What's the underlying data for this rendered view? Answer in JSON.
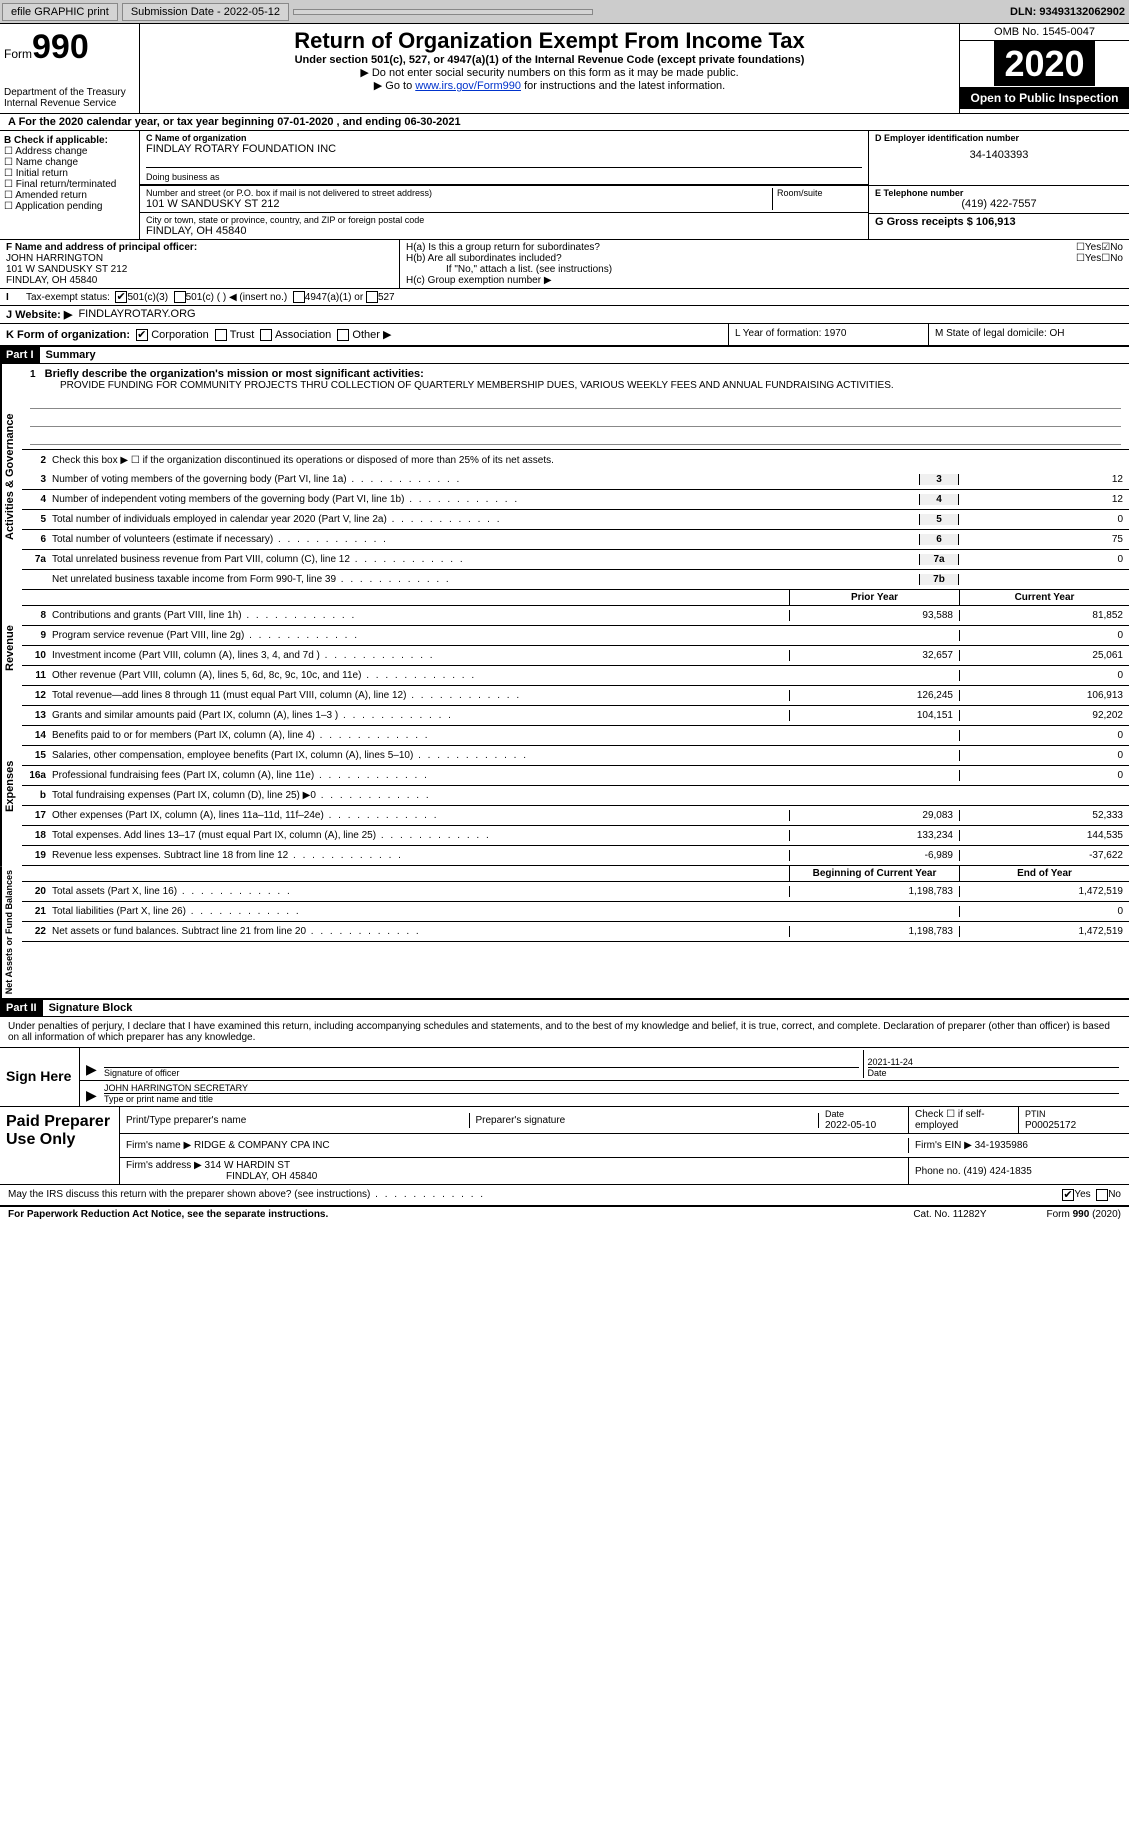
{
  "toolbar": {
    "efile": "efile GRAPHIC print",
    "subdate_label": "Submission Date - 2022-05-12",
    "dln": "DLN: 93493132062902"
  },
  "header": {
    "formword": "Form",
    "formnum": "990",
    "dept": "Department of the Treasury\nInternal Revenue Service",
    "title": "Return of Organization Exempt From Income Tax",
    "subtitle": "Under section 501(c), 527, or 4947(a)(1) of the Internal Revenue Code (except private foundations)",
    "instr1": "▶ Do not enter social security numbers on this form as it may be made public.",
    "instr2a": "▶ Go to ",
    "instr2link": "www.irs.gov/Form990",
    "instr2b": " for instructions and the latest information.",
    "omb": "OMB No. 1545-0047",
    "year": "2020",
    "open": "Open to Public Inspection"
  },
  "period": "A For the 2020 calendar year, or tax year beginning 07-01-2020    , and ending 06-30-2021",
  "B": {
    "label": "B Check if applicable:",
    "items": [
      "Address change",
      "Name change",
      "Initial return",
      "Final return/terminated",
      "Amended return",
      "Application pending"
    ]
  },
  "C": {
    "nameLabel": "C Name of organization",
    "name": "FINDLAY ROTARY FOUNDATION INC",
    "dbaLabel": "Doing business as",
    "dba": "",
    "streetLabel": "Number and street (or P.O. box if mail is not delivered to street address)",
    "roomLabel": "Room/suite",
    "street": "101 W SANDUSKY ST 212",
    "cityLabel": "City or town, state or province, country, and ZIP or foreign postal code",
    "city": "FINDLAY, OH  45840"
  },
  "D": {
    "label": "D Employer identification number",
    "value": "34-1403393"
  },
  "E": {
    "label": "E Telephone number",
    "value": "(419) 422-7557"
  },
  "G": {
    "label": "G Gross receipts $ 106,913"
  },
  "F": {
    "label": "F  Name and address of principal officer:",
    "name": "JOHN HARRINGTON",
    "addr1": "101 W SANDUSKY ST 212",
    "addr2": "FINDLAY, OH  45840"
  },
  "H": {
    "a": "H(a)  Is this a group return for subordinates?",
    "b": "H(b)  Are all subordinates included?",
    "bnote": "If \"No,\" attach a list. (see instructions)",
    "c": "H(c)  Group exemption number ▶",
    "yes": "Yes",
    "no": "No"
  },
  "I": {
    "label": "Tax-exempt status:",
    "opt1": "501(c)(3)",
    "opt2": "501(c) (   ) ◀ (insert no.)",
    "opt3": "4947(a)(1) or",
    "opt4": "527"
  },
  "J": {
    "label": "J  Website: ▶",
    "value": "FINDLAYROTARY.ORG"
  },
  "K": {
    "label": "K Form of organization:",
    "opts": [
      "Corporation",
      "Trust",
      "Association",
      "Other ▶"
    ]
  },
  "L": {
    "label": "L Year of formation: 1970"
  },
  "M": {
    "label": "M State of legal domicile: OH"
  },
  "part1": {
    "num": "Part I",
    "title": "Summary"
  },
  "summary": {
    "line1Label": "Briefly describe the organization's mission or most significant activities:",
    "mission": "PROVIDE FUNDING FOR COMMUNITY PROJECTS THRU COLLECTION OF QUARTERLY MEMBERSHIP DUES, VARIOUS WEEKLY FEES AND ANNUAL FUNDRAISING ACTIVITIES.",
    "line2": "Check this box ▶ ☐  if the organization discontinued its operations or disposed of more than 25% of its net assets.",
    "lines": [
      {
        "n": "3",
        "t": "Number of voting members of the governing body (Part VI, line 1a)",
        "c": "3",
        "v": "12"
      },
      {
        "n": "4",
        "t": "Number of independent voting members of the governing body (Part VI, line 1b)",
        "c": "4",
        "v": "12"
      },
      {
        "n": "5",
        "t": "Total number of individuals employed in calendar year 2020 (Part V, line 2a)",
        "c": "5",
        "v": "0"
      },
      {
        "n": "6",
        "t": "Total number of volunteers (estimate if necessary)",
        "c": "6",
        "v": "75"
      },
      {
        "n": "7a",
        "t": "Total unrelated business revenue from Part VIII, column (C), line 12",
        "c": "7a",
        "v": "0"
      },
      {
        "n": "",
        "t": "Net unrelated business taxable income from Form 990-T, line 39",
        "c": "7b",
        "v": ""
      }
    ]
  },
  "revHeader": {
    "prior": "Prior Year",
    "current": "Current Year"
  },
  "revenue": [
    {
      "n": "8",
      "t": "Contributions and grants (Part VIII, line 1h)",
      "p": "93,588",
      "c": "81,852"
    },
    {
      "n": "9",
      "t": "Program service revenue (Part VIII, line 2g)",
      "p": "",
      "c": "0"
    },
    {
      "n": "10",
      "t": "Investment income (Part VIII, column (A), lines 3, 4, and 7d )",
      "p": "32,657",
      "c": "25,061"
    },
    {
      "n": "11",
      "t": "Other revenue (Part VIII, column (A), lines 5, 6d, 8c, 9c, 10c, and 11e)",
      "p": "",
      "c": "0"
    },
    {
      "n": "12",
      "t": "Total revenue—add lines 8 through 11 (must equal Part VIII, column (A), line 12)",
      "p": "126,245",
      "c": "106,913"
    }
  ],
  "expenses": [
    {
      "n": "13",
      "t": "Grants and similar amounts paid (Part IX, column (A), lines 1–3 )",
      "p": "104,151",
      "c": "92,202"
    },
    {
      "n": "14",
      "t": "Benefits paid to or for members (Part IX, column (A), line 4)",
      "p": "",
      "c": "0"
    },
    {
      "n": "15",
      "t": "Salaries, other compensation, employee benefits (Part IX, column (A), lines 5–10)",
      "p": "",
      "c": "0"
    },
    {
      "n": "16a",
      "t": "Professional fundraising fees (Part IX, column (A), line 11e)",
      "p": "",
      "c": "0"
    },
    {
      "n": "b",
      "t": "Total fundraising expenses (Part IX, column (D), line 25) ▶0",
      "p": "SHADE",
      "c": "SHADE"
    },
    {
      "n": "17",
      "t": "Other expenses (Part IX, column (A), lines 11a–11d, 11f–24e)",
      "p": "29,083",
      "c": "52,333"
    },
    {
      "n": "18",
      "t": "Total expenses. Add lines 13–17 (must equal Part IX, column (A), line 25)",
      "p": "133,234",
      "c": "144,535"
    },
    {
      "n": "19",
      "t": "Revenue less expenses. Subtract line 18 from line 12",
      "p": "-6,989",
      "c": "-37,622"
    }
  ],
  "netHeader": {
    "begin": "Beginning of Current Year",
    "end": "End of Year"
  },
  "netassets": [
    {
      "n": "20",
      "t": "Total assets (Part X, line 16)",
      "p": "1,198,783",
      "c": "1,472,519"
    },
    {
      "n": "21",
      "t": "Total liabilities (Part X, line 26)",
      "p": "",
      "c": "0"
    },
    {
      "n": "22",
      "t": "Net assets or fund balances. Subtract line 21 from line 20",
      "p": "1,198,783",
      "c": "1,472,519"
    }
  ],
  "part2": {
    "num": "Part II",
    "title": "Signature Block"
  },
  "sigDecl": "Under penalties of perjury, I declare that I have examined this return, including accompanying schedules and statements, and to the best of my knowledge and belief, it is true, correct, and complete. Declaration of preparer (other than officer) is based on all information of which preparer has any knowledge.",
  "sign": {
    "here": "Sign Here",
    "sigOfficer": "Signature of officer",
    "date": "Date",
    "dateVal": "2021-11-24",
    "nameTitle": "JOHN HARRINGTON SECRETARY",
    "typeLabel": "Type or print name and title"
  },
  "paid": {
    "label": "Paid Preparer Use Only",
    "printLabel": "Print/Type preparer's name",
    "sigLabel": "Preparer's signature",
    "dateLabel": "Date",
    "dateVal": "2022-05-10",
    "checkLabel": "Check ☐ if self-employed",
    "ptinLabel": "PTIN",
    "ptin": "P00025172",
    "firmNameLabel": "Firm's name    ▶",
    "firmName": "RIDGE & COMPANY CPA INC",
    "firmEinLabel": "Firm's EIN ▶",
    "firmEin": "34-1935986",
    "firmAddrLabel": "Firm's address ▶",
    "firmAddr": "314 W HARDIN ST",
    "firmCity": "FINDLAY, OH  45840",
    "phoneLabel": "Phone no.",
    "phone": "(419) 424-1835"
  },
  "discuss": {
    "text": "May the IRS discuss this return with the preparer shown above? (see instructions)",
    "yes": "Yes",
    "no": "No"
  },
  "footer": {
    "pra": "For Paperwork Reduction Act Notice, see the separate instructions.",
    "cat": "Cat. No. 11282Y",
    "form": "Form 990 (2020)"
  },
  "sideLabels": {
    "ag": "Activities & Governance",
    "rev": "Revenue",
    "exp": "Expenses",
    "net": "Net Assets or Fund Balances"
  }
}
